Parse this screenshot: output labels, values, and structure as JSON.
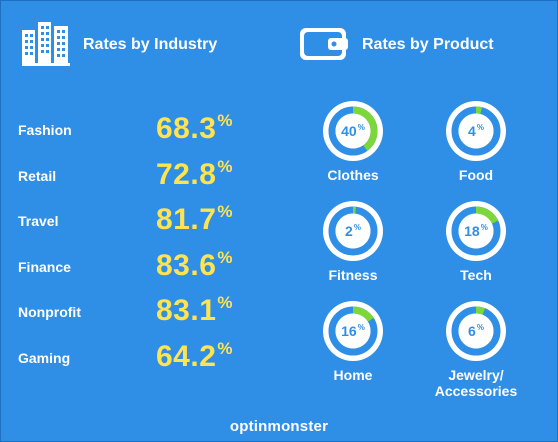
{
  "headers": {
    "industry_title": "Rates by Industry",
    "product_title": "Rates by Product"
  },
  "icons": {
    "industry": "buildings-icon",
    "product": "wallet-icon"
  },
  "colors": {
    "background": "#2f8fe6",
    "rate_text": "#ffe34f",
    "ring_fill": "#7dd63a",
    "ring_track": "#ffffff"
  },
  "chart_data": [
    {
      "type": "table",
      "title": "Rates by Industry",
      "unit": "%",
      "rows": [
        {
          "label": "Fashion",
          "value": 68.3
        },
        {
          "label": "Retail",
          "value": 72.8
        },
        {
          "label": "Travel",
          "value": 81.7
        },
        {
          "label": "Finance",
          "value": 83.6
        },
        {
          "label": "Nonprofit",
          "value": 83.1
        },
        {
          "label": "Gaming",
          "value": 64.2
        }
      ]
    },
    {
      "type": "pie",
      "title": "Rates by Product",
      "unit": "%",
      "items": [
        {
          "label": "Clothes",
          "value": 40
        },
        {
          "label": "Food",
          "value": 4
        },
        {
          "label": "Fitness",
          "value": 2
        },
        {
          "label": "Tech",
          "value": 18
        },
        {
          "label": "Home",
          "value": 16
        },
        {
          "label": "Jewelry/ Accessories",
          "value": 6
        }
      ]
    }
  ],
  "brand": {
    "name": "optinmonster"
  }
}
